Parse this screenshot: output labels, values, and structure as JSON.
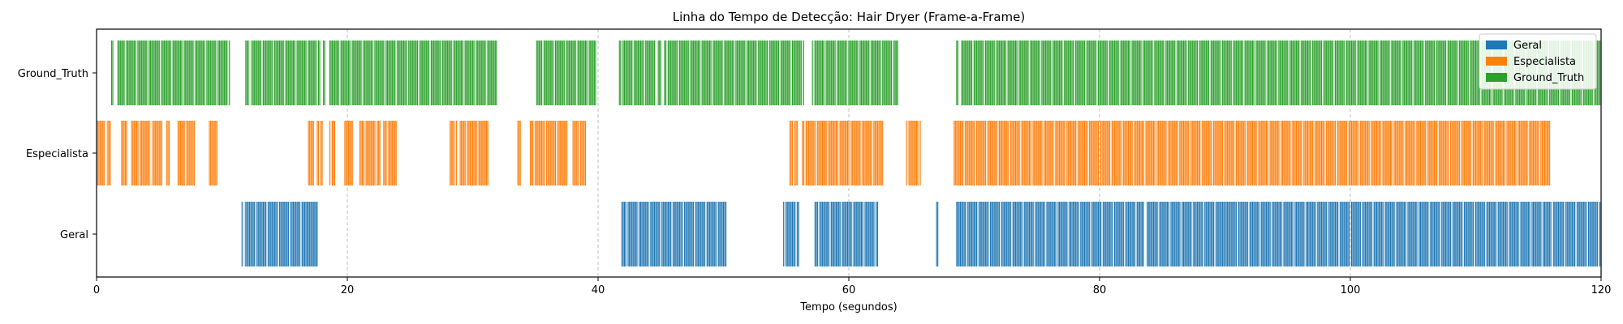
{
  "chart_data": {
    "type": "timeline",
    "title": "Linha do Tempo de Detecção: Hair Dryer (Frame-a-Frame)",
    "xlabel": "Tempo (segundos)",
    "ylabel": "",
    "xlim": [
      0,
      120
    ],
    "xticks": [
      0,
      20,
      40,
      60,
      80,
      100,
      120
    ],
    "grid": "vertical dashed",
    "legend_position": "top-right",
    "categories": [
      "Geral",
      "Especialista",
      "Ground_Truth"
    ],
    "series": [
      {
        "name": "Geral",
        "color": "#1f77b4",
        "intervals": [
          [
            11.6,
            17.6
          ],
          [
            41.9,
            50.2
          ],
          [
            54.8,
            56.0
          ],
          [
            57.3,
            62.3
          ],
          [
            67.0,
            67.1
          ],
          [
            68.6,
            83.5
          ],
          [
            83.8,
            90.0
          ],
          [
            90.1,
            116.0
          ],
          [
            116.2,
            120.0
          ]
        ]
      },
      {
        "name": "Especialista",
        "color": "#ff7f0e",
        "intervals": [
          [
            0.0,
            1.1
          ],
          [
            2.0,
            2.4
          ],
          [
            2.8,
            5.2
          ],
          [
            5.6,
            5.8
          ],
          [
            6.5,
            7.8
          ],
          [
            9.0,
            9.6
          ],
          [
            16.9,
            17.3
          ],
          [
            17.6,
            18.0
          ],
          [
            18.6,
            19.0
          ],
          [
            19.8,
            20.5
          ],
          [
            21.0,
            22.6
          ],
          [
            22.9,
            23.9
          ],
          [
            28.2,
            28.7
          ],
          [
            29.0,
            31.3
          ],
          [
            33.6,
            33.8
          ],
          [
            34.6,
            37.6
          ],
          [
            38.0,
            39.0
          ],
          [
            55.3,
            55.9
          ],
          [
            56.3,
            62.7
          ],
          [
            64.6,
            65.7
          ],
          [
            68.4,
            115.9
          ]
        ]
      },
      {
        "name": "Ground_Truth",
        "color": "#2ca02c",
        "intervals": [
          [
            1.2,
            1.3
          ],
          [
            1.7,
            10.6
          ],
          [
            11.9,
            17.8
          ],
          [
            18.1,
            18.2
          ],
          [
            18.6,
            31.9
          ],
          [
            35.1,
            39.8
          ],
          [
            41.7,
            44.6
          ],
          [
            44.8,
            45.0
          ],
          [
            45.3,
            56.4
          ],
          [
            57.1,
            63.9
          ],
          [
            68.6,
            68.7
          ],
          [
            69.0,
            120.0
          ]
        ]
      }
    ]
  }
}
